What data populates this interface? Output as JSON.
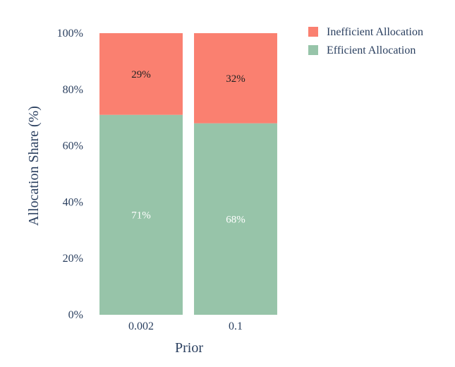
{
  "chart_data": {
    "type": "bar",
    "stacked": true,
    "categories": [
      "0.002",
      "0.1"
    ],
    "series": [
      {
        "name": "Efficient Allocation",
        "values": [
          71,
          68
        ],
        "color": "#97c4a9",
        "label_color": "#ffffff"
      },
      {
        "name": "Inefficient Allocation",
        "values": [
          29,
          32
        ],
        "color": "#fa8070",
        "label_color": "#222222"
      }
    ],
    "data_labels": [
      [
        "71%",
        "68%"
      ],
      [
        "29%",
        "32%"
      ]
    ],
    "xlabel": "Prior",
    "ylabel": "Allocation Share (%)",
    "ylim": [
      0,
      100
    ],
    "yticks": [
      0,
      20,
      40,
      60,
      80,
      100
    ],
    "ytick_labels": [
      "0%",
      "20%",
      "40%",
      "60%",
      "80%",
      "100%"
    ],
    "grid": false,
    "legend_position": "top-right",
    "legend_order": [
      "Inefficient Allocation",
      "Efficient Allocation"
    ]
  }
}
